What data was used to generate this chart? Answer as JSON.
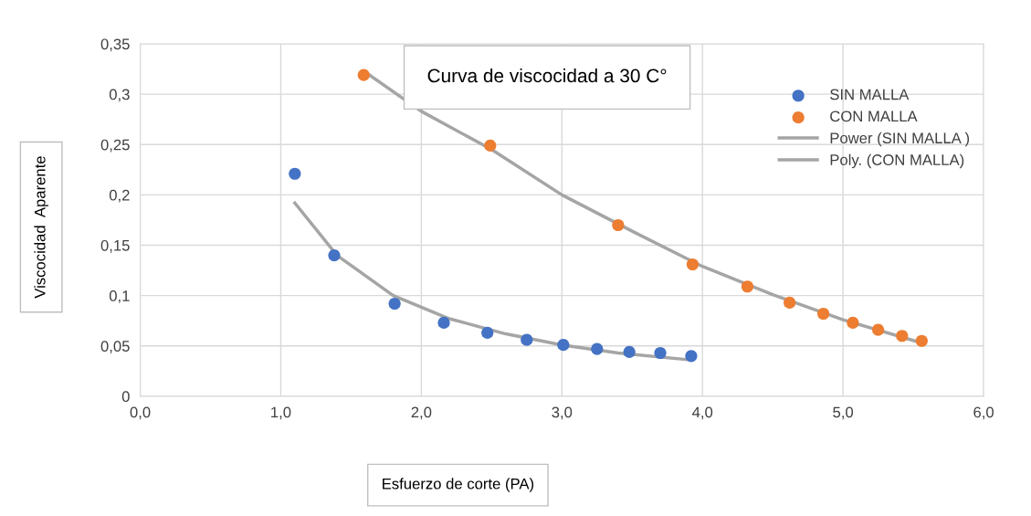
{
  "chart_data": {
    "type": "scatter",
    "title": "Curva de viscocidad a 30 C°",
    "xlabel": "Esfuerzo de corte (PA)",
    "ylabel": "Viscocidad  Aparente",
    "series": [
      {
        "name": "SIN MALLA",
        "color": "#4472c4",
        "x": [
          1.1,
          1.38,
          1.81,
          2.16,
          2.47,
          2.75,
          3.01,
          3.25,
          3.48,
          3.7,
          3.92
        ],
        "values": [
          0.221,
          0.14,
          0.092,
          0.073,
          0.063,
          0.056,
          0.051,
          0.047,
          0.044,
          0.043,
          0.04
        ]
      },
      {
        "name": "CON MALLA",
        "color": "#ed7d31",
        "x": [
          1.59,
          2.49,
          3.4,
          3.93,
          4.32,
          4.62,
          4.86,
          5.07,
          5.25,
          5.42,
          5.56
        ],
        "values": [
          0.319,
          0.249,
          0.17,
          0.131,
          0.109,
          0.093,
          0.082,
          0.073,
          0.066,
          0.06,
          0.055
        ]
      },
      {
        "name": "Power (SIN MALLA )",
        "type": "line",
        "color": "#a5a5a5",
        "x": [
          1.1,
          1.4,
          1.8,
          2.2,
          2.6,
          3.0,
          3.4,
          3.92
        ],
        "values": [
          0.192,
          0.14,
          0.1,
          0.077,
          0.062,
          0.051,
          0.043,
          0.036
        ]
      },
      {
        "name": "Poly. (CON MALLA)",
        "type": "line",
        "color": "#a5a5a5",
        "x": [
          1.59,
          2.0,
          2.5,
          3.0,
          3.5,
          4.0,
          4.5,
          5.0,
          5.56
        ],
        "values": [
          0.323,
          0.283,
          0.245,
          0.2,
          0.164,
          0.129,
          0.101,
          0.076,
          0.053
        ]
      }
    ],
    "xlim": [
      0,
      6
    ],
    "xticks": [
      {
        "value": 0,
        "label": "0,0"
      },
      {
        "value": 1,
        "label": "1,0"
      },
      {
        "value": 2,
        "label": "2,0"
      },
      {
        "value": 3,
        "label": "3,0"
      },
      {
        "value": 4,
        "label": "4,0"
      },
      {
        "value": 5,
        "label": "5,0"
      },
      {
        "value": 6,
        "label": "6,0"
      }
    ],
    "ylim": [
      0,
      0.35
    ],
    "yticks": [
      0,
      {
        "value": 0.05,
        "label": "0,05"
      },
      {
        "value": 0.1,
        "label": "0,1"
      },
      {
        "value": 0.15,
        "label": "0,15"
      },
      {
        "value": 0.2,
        "label": "0,2"
      },
      {
        "value": 0.25,
        "label": "0,25"
      },
      {
        "value": 0.3,
        "label": "0,3"
      },
      {
        "value": 0.35,
        "label": "0,35"
      }
    ],
    "grid": true,
    "legend": "right"
  }
}
